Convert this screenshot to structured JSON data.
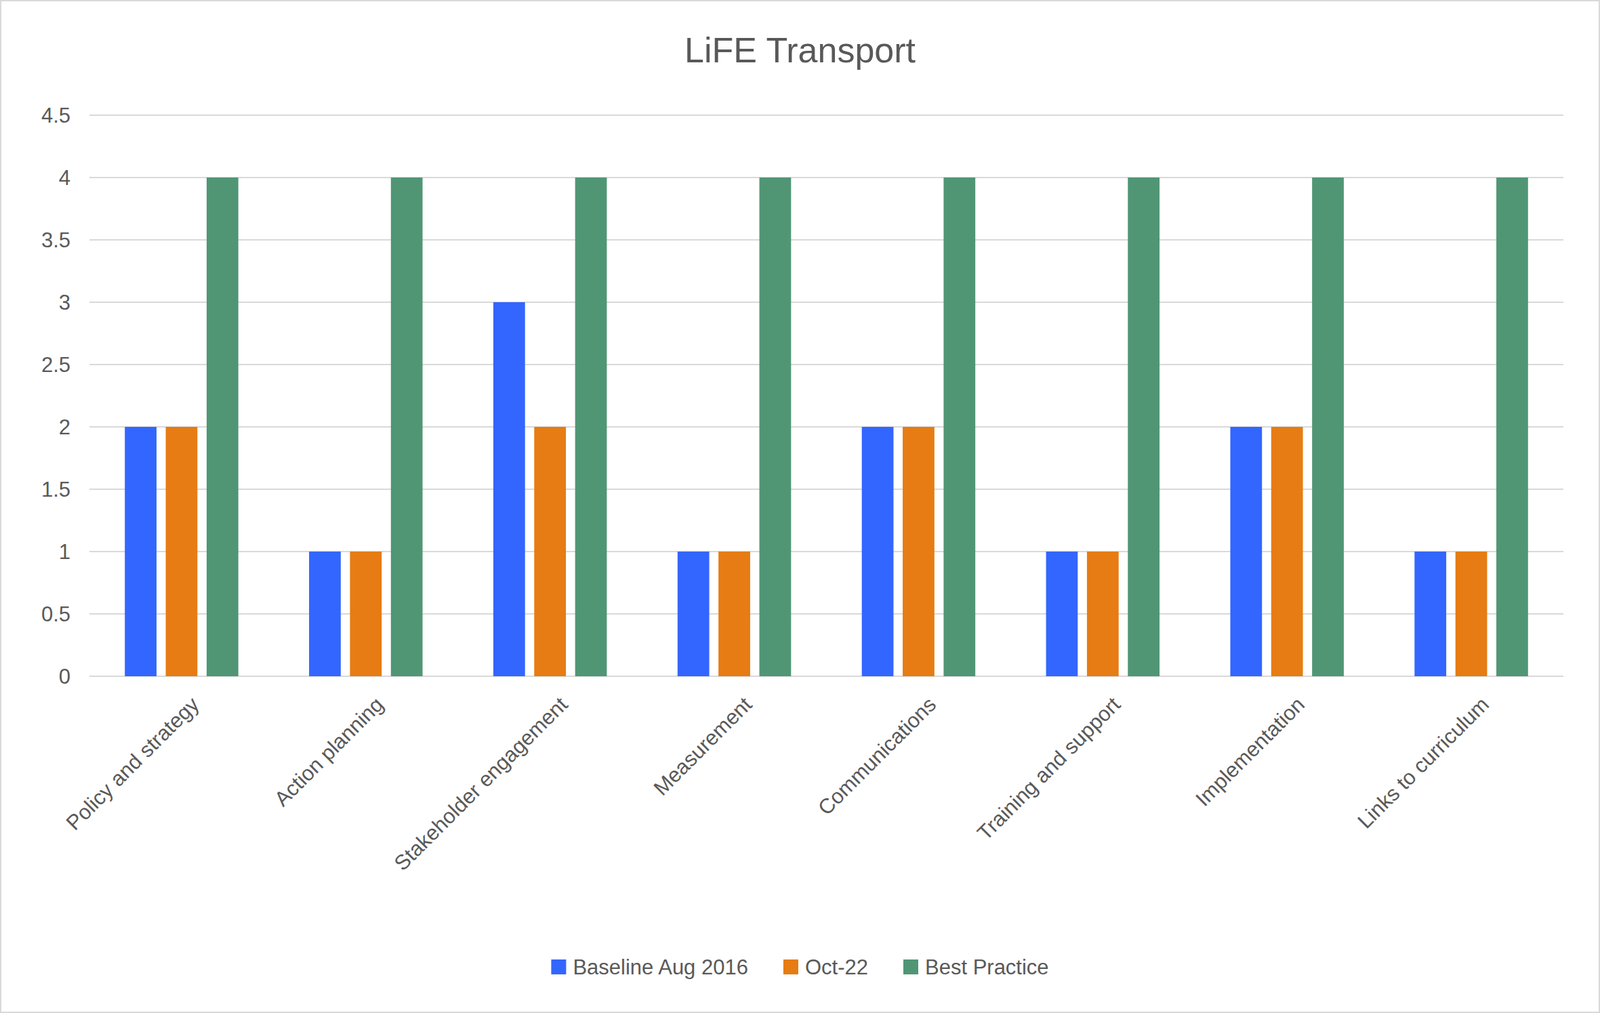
{
  "chart_data": {
    "type": "bar",
    "title": "LiFE Transport",
    "categories": [
      "Policy and strategy",
      "Action planning",
      "Stakeholder engagement",
      "Measurement",
      "Communications",
      "Training and support",
      "Implementation",
      "Links to curriculum"
    ],
    "series": [
      {
        "name": "Baseline Aug 2016",
        "color": "#3366ff",
        "values": [
          2,
          1,
          3,
          1,
          2,
          1,
          2,
          1
        ]
      },
      {
        "name": "Oct-22",
        "color": "#e67c13",
        "values": [
          2,
          1,
          2,
          1,
          2,
          1,
          2,
          1
        ]
      },
      {
        "name": "Best Practice",
        "color": "#509675",
        "values": [
          4,
          4,
          4,
          4,
          4,
          4,
          4,
          4
        ]
      }
    ],
    "ylim": [
      0,
      4.5
    ],
    "yticks": [
      0,
      0.5,
      1,
      1.5,
      2,
      2.5,
      3,
      3.5,
      4,
      4.5
    ],
    "grid": true,
    "legend": "bottom"
  }
}
